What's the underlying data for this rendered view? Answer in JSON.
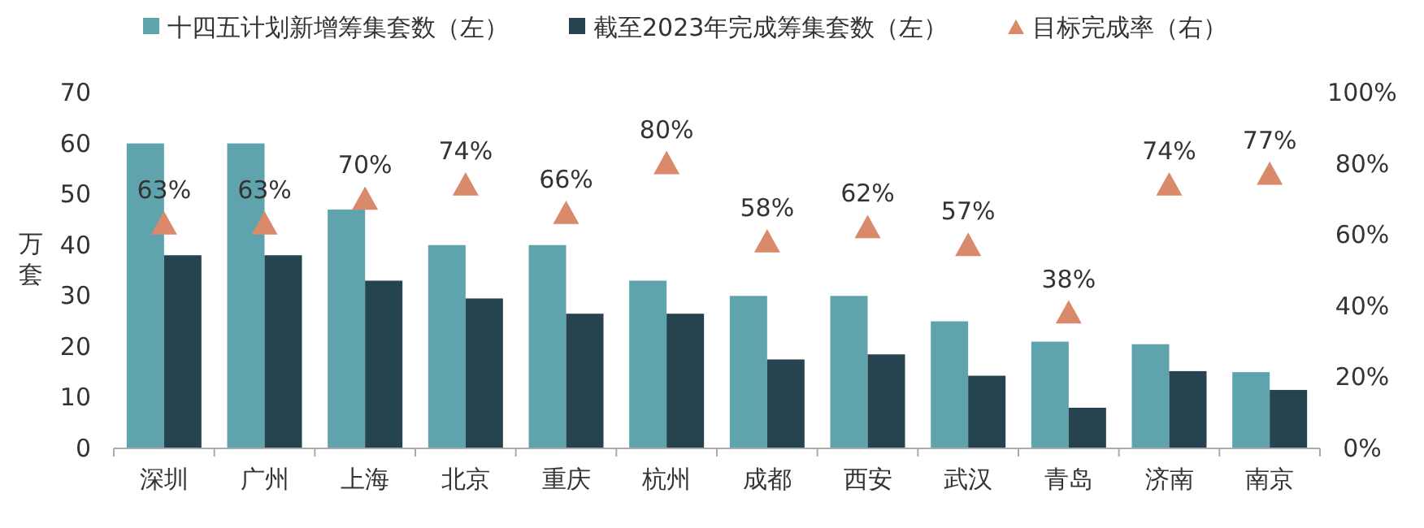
{
  "chart_data": {
    "type": "bar",
    "categories": [
      "深圳",
      "广州",
      "上海",
      "北京",
      "重庆",
      "杭州",
      "成都",
      "西安",
      "武汉",
      "青岛",
      "济南",
      "南京"
    ],
    "ylabel": "万套",
    "ylim": [
      0,
      70
    ],
    "yticks": [
      0,
      10,
      20,
      30,
      40,
      50,
      60,
      70
    ],
    "y2lim": [
      0,
      100
    ],
    "y2ticks": [
      {
        "value": 0,
        "label": "0%"
      },
      {
        "value": 20,
        "label": "20%"
      },
      {
        "value": 40,
        "label": "40%"
      },
      {
        "value": 60,
        "label": "60%"
      },
      {
        "value": 80,
        "label": "80%"
      },
      {
        "value": 100,
        "label": "100%"
      }
    ],
    "legend": "top",
    "series": [
      {
        "name": "十四五计划新增筹集套数（左）",
        "color": "#5fa3ad",
        "values": [
          60,
          60,
          47,
          40,
          40,
          33,
          30,
          30,
          25,
          21,
          20.5,
          15
        ]
      },
      {
        "name": "截至2023年完成筹集套数（左）",
        "color": "#25444f",
        "values": [
          38,
          38,
          33,
          29.5,
          26.5,
          26.5,
          17.5,
          18.5,
          14.3,
          8,
          15.2,
          11.5
        ]
      },
      {
        "name": "目标完成率（右）",
        "type": "scatter",
        "axis": "y2",
        "marker": "triangle",
        "color": "#d98a6a",
        "values": [
          63,
          63,
          70,
          74,
          66,
          80,
          58,
          62,
          57,
          38,
          74,
          77
        ],
        "value_labels": [
          "63%",
          "63%",
          "70%",
          "74%",
          "66%",
          "80%",
          "58%",
          "62%",
          "57%",
          "38%",
          "74%",
          "77%"
        ]
      }
    ]
  }
}
